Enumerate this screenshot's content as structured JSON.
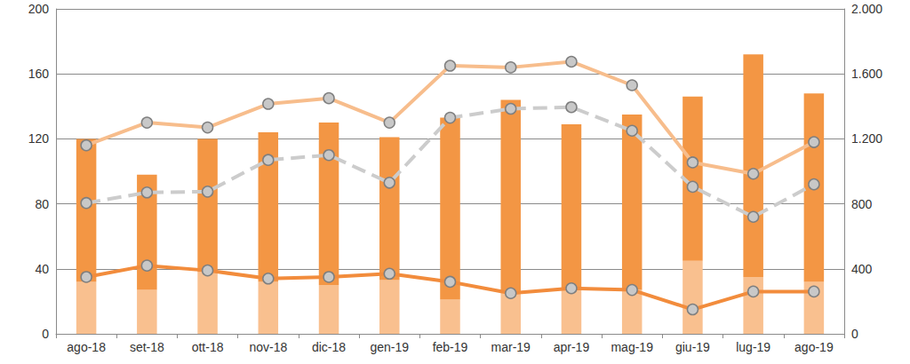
{
  "chart_data": {
    "type": "bar",
    "categories": [
      "ago-18",
      "set-18",
      "ott-18",
      "nov-18",
      "dic-18",
      "gen-19",
      "feb-19",
      "mar-19",
      "apr-19",
      "mag-19",
      "giu-19",
      "lug-19",
      "ago-19"
    ],
    "stacked": true,
    "grid": true,
    "series": [
      {
        "type": "bar",
        "color": "#f9c08f",
        "values": [
          32,
          27,
          38,
          32,
          30,
          33,
          21,
          25,
          27,
          27,
          45,
          35,
          32
        ]
      },
      {
        "type": "bar",
        "color": "#f39644",
        "values": [
          88,
          71,
          82,
          92,
          100,
          88,
          112,
          119,
          102,
          108,
          101,
          137,
          116
        ]
      },
      {
        "type": "line",
        "color": "#f28c3c",
        "marker": "circle",
        "values": [
          35,
          42,
          39,
          34,
          35,
          37,
          32,
          25,
          28,
          27,
          15,
          26,
          26
        ]
      },
      {
        "type": "line",
        "color": "#f7bd8c",
        "marker": "circle",
        "axis": "y2",
        "values": [
          1160,
          1300,
          1270,
          1415,
          1450,
          1300,
          1650,
          1640,
          1675,
          1530,
          1055,
          985,
          1180
        ]
      },
      {
        "type": "line",
        "color": "#cccccc",
        "marker": "circle",
        "line_style": "dashed",
        "axis": "y2",
        "values": [
          805,
          870,
          875,
          1070,
          1100,
          930,
          1330,
          1385,
          1395,
          1250,
          905,
          720,
          920
        ]
      }
    ],
    "ylim": [
      0,
      200
    ],
    "yticks": [
      0,
      40,
      80,
      120,
      160,
      200
    ],
    "y2lim": [
      0,
      2000
    ],
    "y2ticks": [
      0,
      400,
      800,
      {
        "value": 1200,
        "label": "1.200"
      },
      {
        "value": 1600,
        "label": "1.600"
      },
      {
        "value": 2000,
        "label": "2.000"
      }
    ]
  }
}
